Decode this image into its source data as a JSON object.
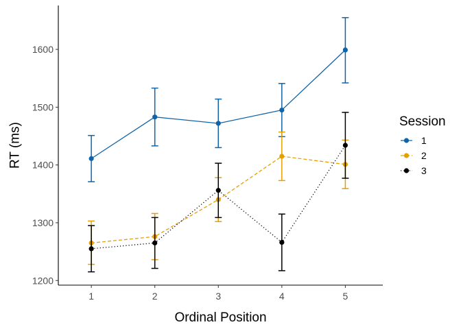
{
  "chart_data": {
    "type": "line",
    "xlabel": "Ordinal Position",
    "ylabel": "RT (ms)",
    "x": [
      1,
      2,
      3,
      4,
      5
    ],
    "xticks": [
      "1",
      "2",
      "3",
      "4",
      "5"
    ],
    "xlim": [
      0.48,
      5.59
    ],
    "ylim": [
      1192,
      1676
    ],
    "yticks": [
      1200,
      1300,
      1400,
      1500,
      1600
    ],
    "grid": false,
    "legend": {
      "title": "Session",
      "placement": "right"
    },
    "series": [
      {
        "name": "1",
        "color": "#0F63A8",
        "linestyle": "solid",
        "values": [
          1411,
          1483,
          1472,
          1495,
          1599
        ],
        "err_low": [
          1371,
          1433,
          1430,
          1449,
          1542
        ],
        "err_high": [
          1451,
          1533,
          1514,
          1541,
          1655
        ]
      },
      {
        "name": "2",
        "color": "#E69F00",
        "linestyle": "dashed",
        "values": [
          1265,
          1276,
          1340,
          1415,
          1401
        ],
        "err_low": [
          1228,
          1236,
          1302,
          1373,
          1359
        ],
        "err_high": [
          1303,
          1316,
          1378,
          1457,
          1443
        ]
      },
      {
        "name": "3",
        "color": "#000000",
        "linestyle": "dotted",
        "values": [
          1255,
          1265,
          1356,
          1266,
          1434
        ],
        "err_low": [
          1215,
          1221,
          1309,
          1217,
          1377
        ],
        "err_high": [
          1295,
          1309,
          1403,
          1315,
          1491
        ]
      }
    ]
  }
}
